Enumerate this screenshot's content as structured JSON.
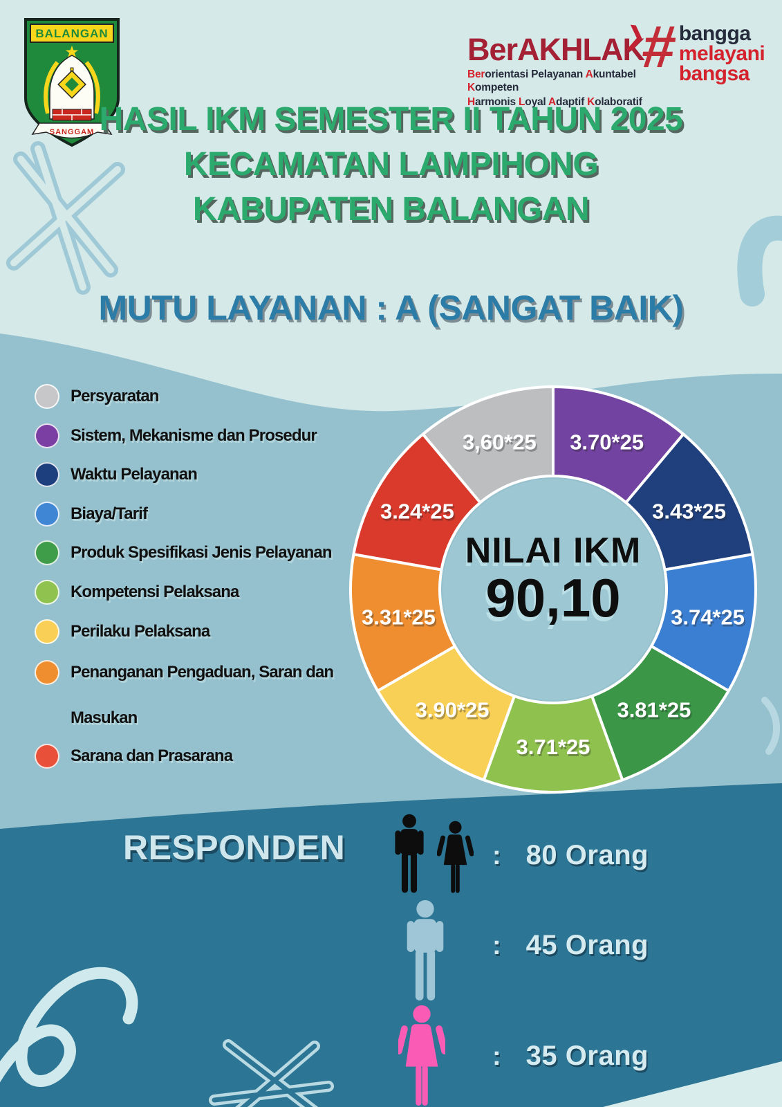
{
  "header": {
    "regency_logo": {
      "banner": "BALANGAN",
      "ribbon": "SANGGAM"
    },
    "berakhlak": {
      "title": "BerAKHLAK",
      "arrow": "❯",
      "subtitle_line1": [
        {
          "t": "Ber",
          "c": "red"
        },
        {
          "t": "orientasi Pelayanan ",
          "c": "dk"
        },
        {
          "t": "A",
          "c": "red"
        },
        {
          "t": "kuntabel ",
          "c": "dk"
        },
        {
          "t": "K",
          "c": "red"
        },
        {
          "t": "ompeten",
          "c": "dk"
        }
      ],
      "subtitle_line2": [
        {
          "t": "H",
          "c": "red"
        },
        {
          "t": "armonis ",
          "c": "dk"
        },
        {
          "t": "L",
          "c": "red"
        },
        {
          "t": "oyal ",
          "c": "dk"
        },
        {
          "t": "A",
          "c": "red"
        },
        {
          "t": "daptif ",
          "c": "dk"
        },
        {
          "t": "K",
          "c": "red"
        },
        {
          "t": "olaboratif",
          "c": "dk"
        }
      ]
    },
    "bangga_logo": {
      "hash": "#",
      "words": [
        {
          "t": "bangga",
          "c": "dk"
        },
        {
          "t": "melayani",
          "c": "red"
        },
        {
          "t": "bangsa",
          "c": "red"
        }
      ]
    }
  },
  "title_lines": {
    "line1": "HASIL IKM SEMESTER II TAHUN 2025",
    "line2": "KECAMATAN LAMPIHONG",
    "line3": "KABUPATEN BALANGAN"
  },
  "quality": "MUTU LAYANAN :  A (SANGAT BAIK)",
  "chart_data": {
    "type": "pie",
    "subtype": "donut",
    "center_title": "NILAI IKM",
    "center_value": "90,10",
    "equal_slices": true,
    "slice_angle_deg": 40,
    "start": "top, clockwise",
    "segments": [
      {
        "label": "Sistem, Mekanisme dan Prosedur",
        "display": "3.70*25",
        "value": 3.7,
        "weight": 25,
        "color": "#7243a0"
      },
      {
        "label": "Waktu Pelayanan",
        "display": "3.43*25",
        "value": 3.43,
        "weight": 25,
        "color": "#1f3f7d"
      },
      {
        "label": "Biaya/Tarif",
        "display": "3.74*25",
        "value": 3.74,
        "weight": 25,
        "color": "#3b7fd3"
      },
      {
        "label": "Produk Spesifikasi Jenis Pelayanan",
        "display": "3.81*25",
        "value": 3.81,
        "weight": 25,
        "color": "#3b9747"
      },
      {
        "label": "Kompetensi Pelaksana",
        "display": "3.71*25",
        "value": 3.71,
        "weight": 25,
        "color": "#8fc14f"
      },
      {
        "label": "Perilaku Pelaksana",
        "display": "3.90*25",
        "value": 3.9,
        "weight": 25,
        "color": "#f9d056"
      },
      {
        "label": "Penanganan Pengaduan, Saran dan Masukan",
        "display": "3.31*25",
        "value": 3.31,
        "weight": 25,
        "color": "#ee8e30"
      },
      {
        "label": "Sarana dan Prasarana",
        "display": "3.24*25",
        "value": 3.24,
        "weight": 25,
        "color": "#d93a2b"
      },
      {
        "label": "Persyaratan",
        "display": "3,60*25",
        "value": 3.6,
        "weight": 25,
        "color": "#bcbec0"
      }
    ]
  },
  "legend": {
    "items": [
      {
        "label": "Persyaratan",
        "color": "#c7c7c9"
      },
      {
        "label": "Sistem, Mekanisme dan Prosedur",
        "color": "#7b3fa4"
      },
      {
        "label": "Waktu Pelayanan",
        "color": "#1e3f7e"
      },
      {
        "label": "Biaya/Tarif",
        "color": "#3f86d4"
      },
      {
        "label": "Produk Spesifikasi Jenis Pelayanan",
        "color": "#3f9c49"
      },
      {
        "label": "Kompetensi Pelaksana",
        "color": "#8fc24f"
      },
      {
        "label": "Perilaku Pelaksana",
        "color": "#f9cf55"
      },
      {
        "label": "Penanganan Pengaduan, Saran dan",
        "label2": "Masukan",
        "color": "#ef8e2f"
      },
      {
        "label": "Sarana dan Prasarana",
        "color": "#e8503a"
      }
    ]
  },
  "responden": {
    "heading": "RESPONDEN",
    "colon": ":",
    "rows": [
      {
        "group": "total",
        "icons": [
          "man",
          "woman"
        ],
        "icon_color": "#0d0d0d",
        "count": "80 Orang"
      },
      {
        "group": "laki-laki",
        "icons": [
          "man"
        ],
        "icon_color": "#9fc6d6",
        "count": "45 Orang"
      },
      {
        "group": "perempuan",
        "icons": [
          "woman"
        ],
        "icon_color": "#fa5cb5",
        "count": "35 Orang"
      }
    ]
  },
  "palette": {
    "top_background": "#d4e9e8",
    "mid_band": "#95c1ce",
    "dark_band": "#2c7594",
    "title_green": "#2ca96c",
    "quality_blue": "#2b7da8",
    "donut_center": "#9dc7d2",
    "light_text": "#d5ebf0",
    "berakhlak_red": "#a32035",
    "hashtag_red": "#c22d38"
  }
}
